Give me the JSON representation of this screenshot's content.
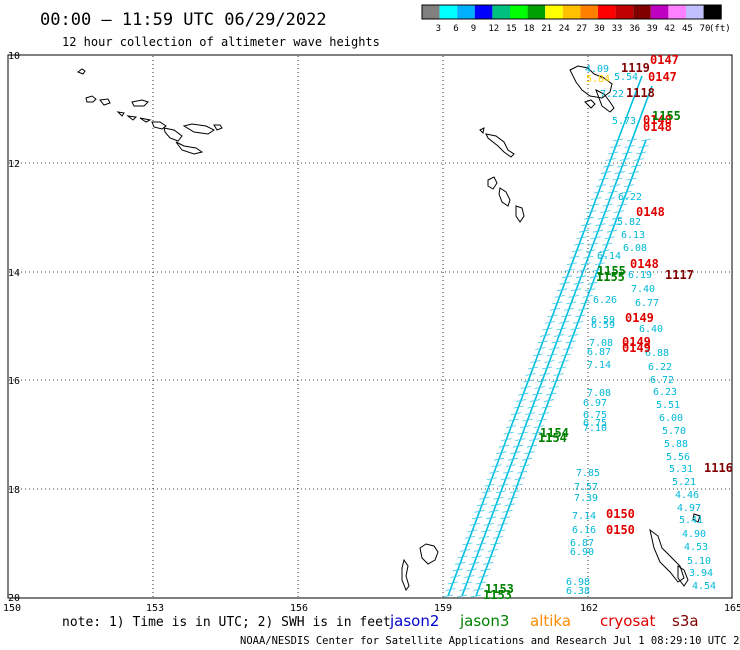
{
  "header": {
    "title": "00:00 – 11:59 UTC 06/29/2022",
    "subtitle": "12 hour collection of altimeter wave heights"
  },
  "colorbar": {
    "unit": "(ft)",
    "labels": [
      "3",
      "6",
      "9",
      "12",
      "15",
      "18",
      "21",
      "24",
      "27",
      "30",
      "33",
      "36",
      "39",
      "42",
      "45",
      "70"
    ],
    "colors": [
      "#808080",
      "#00ffff",
      "#00b0ff",
      "#0000ff",
      "#00c080",
      "#00ff00",
      "#00a000",
      "#ffff00",
      "#ffc000",
      "#ff8000",
      "#ff0000",
      "#c00000",
      "#800000",
      "#c000c0",
      "#ff80ff",
      "#c0c0ff",
      "#000000"
    ]
  },
  "axes": {
    "x_labels": [
      "150",
      "153",
      "156",
      "159",
      "162",
      "165"
    ],
    "y_labels": [
      "10",
      "12",
      "14",
      "16",
      "18",
      "20"
    ]
  },
  "labels": {
    "green_1155": "1155",
    "green_1154": "1154",
    "green_1153": "1153",
    "red_0147": "0147",
    "red_1119": "1119",
    "red_1118": "1118",
    "red_0148": "0148",
    "red_1117": "1117",
    "red_0149": "0149",
    "red_1116": "1116",
    "red_0150": "0150",
    "yellow_label": "5.84"
  },
  "swh_values": {
    "cyan_col1": [
      "7.08",
      "6.97",
      "6.75",
      "6.75",
      "7.10"
    ],
    "cyan_col2": [
      "7.85",
      "7.57",
      "7.39",
      "7.14",
      "6.16",
      "6.87",
      "6.90",
      "6.98",
      "6.38"
    ],
    "cyan_col3": [
      "6.26",
      "6.59",
      "6.59",
      "7.08",
      "6.87",
      "7.14"
    ],
    "cyan_col4": [
      "7.40",
      "6.77",
      "6.40",
      "6.88",
      "6.22",
      "6.72",
      "6.23",
      "5.51",
      "6.00",
      "5.70",
      "5.88",
      "5.56",
      "5.31",
      "5.21",
      "4.46",
      "4.97",
      "5.41",
      "4.90",
      "4.53",
      "5.10",
      "3.94",
      "4.54"
    ],
    "cyan_col5": [
      "5.82",
      "6.13",
      "6.08",
      "6.14",
      "6.19"
    ],
    "cyan_top": [
      "4.09",
      "7.22",
      "5.54",
      "5.73",
      "6.22"
    ]
  },
  "footer": {
    "note": "note:  1) Time is in UTC;  2) SWH is in feet",
    "satellites": [
      {
        "name": "jason2",
        "color": "#0000cc"
      },
      {
        "name": "jason3",
        "color": "#008000"
      },
      {
        "name": "altika",
        "color": "#ff8c00"
      },
      {
        "name": "cryosat",
        "color": "#e00000"
      },
      {
        "name": "s3a",
        "color": "#800000"
      }
    ],
    "credit": "NOAA/NESDIS Center for Satellite Applications and Research    Jul  1 08:29:10 UTC 2022"
  }
}
